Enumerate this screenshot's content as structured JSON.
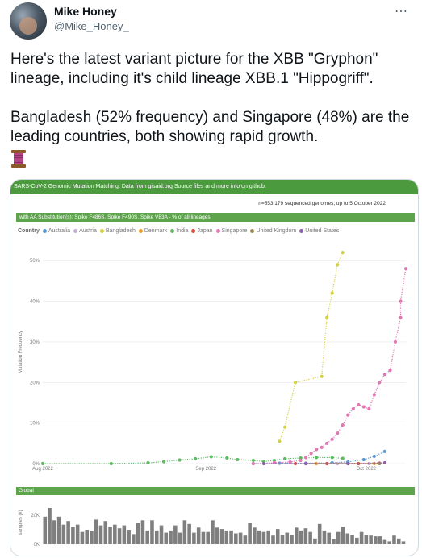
{
  "author": {
    "name": "Mike Honey",
    "handle": "@Mike_Honey_"
  },
  "more_icon": "more-dots-icon",
  "tweet": {
    "paragraph1": "Here's the latest variant picture for the XBB \"Gryphon\" lineage, including it's child lineage XBB.1 \"Hippogriff\".",
    "paragraph2": "Bangladesh (52% frequency) and Singapore (48%) are the leading countries, both showing rapid growth.",
    "emoji": "spool-of-thread"
  },
  "card": {
    "header": {
      "prefix": "SARS-CoV-2 Genomic Mutation Matching. Data from ",
      "link1": "gisaid.org",
      "middle": " Source files and more info on ",
      "link2": "github",
      "suffix": "."
    },
    "n_line": "n=553,179 sequenced genomes, up to 5 October 2022",
    "subtitle": "with AA Substitution(s): Spike F486S, Spike F490S, Spike V83A - % of all lineages",
    "legend_title": "Country",
    "global_label": "Global"
  },
  "chart_data": [
    {
      "type": "line",
      "ylabel": "Mutation Frequency",
      "x_ticks": [
        "Aug 2022",
        "Sep 2022",
        "Oct 2022"
      ],
      "y_ticks": [
        "0%",
        "10%",
        "20%",
        "30%",
        "40%",
        "50%"
      ],
      "ylim": [
        0,
        0.55
      ],
      "xlim": [
        "2022-08-01",
        "2022-10-09"
      ],
      "grid": true,
      "legend_position": "top",
      "series": [
        {
          "name": "Australia",
          "color": "#5b9bd5",
          "points": [
            [
              "2022-09-10",
              0
            ],
            [
              "2022-09-15",
              0.001
            ],
            [
              "2022-09-20",
              0.001
            ],
            [
              "2022-09-25",
              0.002
            ],
            [
              "2022-09-28",
              0.004
            ],
            [
              "2022-10-01",
              0.01
            ],
            [
              "2022-10-03",
              0.018
            ],
            [
              "2022-10-05",
              0.03
            ]
          ]
        },
        {
          "name": "Austria",
          "color": "#c5b0d5",
          "points": [
            [
              "2022-09-20",
              0
            ],
            [
              "2022-09-26",
              0
            ],
            [
              "2022-10-02",
              0
            ]
          ]
        },
        {
          "name": "Bangladesh",
          "color": "#d4d13f",
          "points": [
            [
              "2022-09-15",
              0.055
            ],
            [
              "2022-09-16",
              0.09
            ],
            [
              "2022-09-18",
              0.2
            ],
            [
              "2022-09-23",
              0.215
            ],
            [
              "2022-09-24",
              0.36
            ],
            [
              "2022-09-25",
              0.42
            ],
            [
              "2022-09-26",
              0.49
            ],
            [
              "2022-09-27",
              0.52
            ]
          ]
        },
        {
          "name": "Denmark",
          "color": "#f0a030",
          "points": [
            [
              "2022-09-22",
              0
            ],
            [
              "2022-09-28",
              0
            ],
            [
              "2022-10-03",
              0
            ]
          ]
        },
        {
          "name": "India",
          "color": "#5dbb63",
          "points": [
            [
              "2022-08-01",
              0
            ],
            [
              "2022-08-14",
              0
            ],
            [
              "2022-08-21",
              0.002
            ],
            [
              "2022-08-24",
              0.005
            ],
            [
              "2022-08-27",
              0.009
            ],
            [
              "2022-08-30",
              0.012
            ],
            [
              "2022-09-02",
              0.017
            ],
            [
              "2022-09-05",
              0.014
            ],
            [
              "2022-09-07",
              0.01
            ],
            [
              "2022-09-10",
              0.008
            ],
            [
              "2022-09-12",
              0.005
            ],
            [
              "2022-09-14",
              0.008
            ],
            [
              "2022-09-16",
              0.012
            ],
            [
              "2022-09-19",
              0.014
            ],
            [
              "2022-09-22",
              0.015
            ],
            [
              "2022-09-25",
              0.015
            ],
            [
              "2022-09-27",
              0.013
            ]
          ]
        },
        {
          "name": "Japan",
          "color": "#e04a3a",
          "points": [
            [
              "2022-09-18",
              0
            ],
            [
              "2022-09-24",
              0
            ],
            [
              "2022-09-30",
              0
            ],
            [
              "2022-10-04",
              0.001
            ]
          ]
        },
        {
          "name": "Singapore",
          "color": "#e377b3",
          "points": [
            [
              "2022-09-10",
              0
            ],
            [
              "2022-09-14",
              0.002
            ],
            [
              "2022-09-17",
              0.004
            ],
            [
              "2022-09-19",
              0.008
            ],
            [
              "2022-09-20",
              0.015
            ],
            [
              "2022-09-21",
              0.025
            ],
            [
              "2022-09-22",
              0.035
            ],
            [
              "2022-09-23",
              0.04
            ],
            [
              "2022-09-24",
              0.05
            ],
            [
              "2022-09-25",
              0.06
            ],
            [
              "2022-09-26",
              0.075
            ],
            [
              "2022-09-27",
              0.095
            ],
            [
              "2022-09-28",
              0.12
            ],
            [
              "2022-09-29",
              0.135
            ],
            [
              "2022-09-30",
              0.145
            ],
            [
              "2022-10-01",
              0.14
            ],
            [
              "2022-10-02",
              0.135
            ],
            [
              "2022-10-03",
              0.17
            ],
            [
              "2022-10-04",
              0.2
            ],
            [
              "2022-10-05",
              0.22
            ],
            [
              "2022-10-06",
              0.23
            ],
            [
              "2022-10-07",
              0.3
            ],
            [
              "2022-10-08",
              0.36
            ],
            [
              "2022-10-08",
              0.4
            ],
            [
              "2022-10-09",
              0.48
            ]
          ]
        },
        {
          "name": "United Kingdom",
          "color": "#a08a5a",
          "points": [
            [
              "2022-09-20",
              0
            ],
            [
              "2022-09-28",
              0
            ],
            [
              "2022-10-04",
              0
            ]
          ]
        },
        {
          "name": "United States",
          "color": "#8e5fb0",
          "points": [
            [
              "2022-09-12",
              0
            ],
            [
              "2022-09-20",
              0
            ],
            [
              "2022-09-28",
              0
            ],
            [
              "2022-10-05",
              0.002
            ]
          ]
        }
      ]
    },
    {
      "type": "bar",
      "ylabel": "samples (k)",
      "y_ticks": [
        "0K",
        "20K"
      ],
      "ylim": [
        0,
        30000
      ],
      "color": "#7f7f7f",
      "values": [
        19000,
        25000,
        16500,
        19000,
        13500,
        16000,
        12000,
        13500,
        8500,
        10000,
        9000,
        17000,
        13000,
        16000,
        12000,
        13500,
        11000,
        13000,
        10000,
        7000,
        14500,
        16500,
        9500,
        16500,
        9500,
        13000,
        8000,
        9500,
        13000,
        8000,
        16500,
        14000,
        8000,
        11500,
        8500,
        8500,
        16500,
        11500,
        10500,
        9500,
        9500,
        7500,
        8000,
        6000,
        15000,
        11500,
        9500,
        8500,
        9500,
        6000,
        10500,
        6500,
        8000,
        6500,
        11500,
        9500,
        11000,
        8500,
        4000,
        14000,
        9500,
        8000,
        3500,
        8500,
        12000,
        7500,
        6500,
        4500,
        8500,
        6500,
        6000,
        5500,
        5500,
        3000,
        2000,
        6000,
        4000,
        2000
      ]
    }
  ]
}
